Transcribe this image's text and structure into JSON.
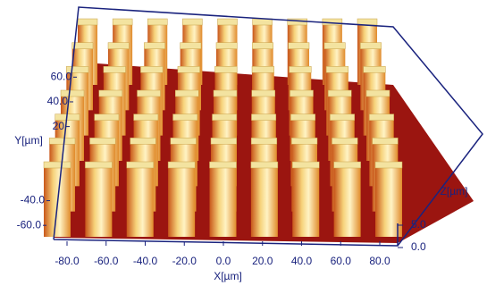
{
  "chart_data": {
    "type": "surface3d",
    "xlabel": "X[µm]",
    "ylabel": "Y[µm]",
    "zlabel": "Z[µm]",
    "xticks": [
      {
        "value": -80,
        "label": "-80.0"
      },
      {
        "value": -60,
        "label": "-60.0"
      },
      {
        "value": -40,
        "label": "-40.0"
      },
      {
        "value": -20,
        "label": "-20.0"
      },
      {
        "value": 0,
        "label": "0.0"
      },
      {
        "value": 20,
        "label": "20.0"
      },
      {
        "value": 40,
        "label": "40.0"
      },
      {
        "value": 60,
        "label": "60.0"
      },
      {
        "value": 80,
        "label": "80.0"
      }
    ],
    "xlim": [
      -90,
      90
    ],
    "yticks": [
      {
        "value": -60,
        "label": "-60.0"
      },
      {
        "value": -40,
        "label": "-40.0"
      },
      {
        "value": 20,
        "label": "20"
      },
      {
        "value": 40,
        "label": "40.0"
      },
      {
        "value": 60,
        "label": "60.0"
      }
    ],
    "ylim": [
      -70,
      70
    ],
    "zticks": [
      {
        "value": 0,
        "label": "0.0"
      },
      {
        "value": 5,
        "label": "5.0"
      }
    ],
    "zlim": [
      0,
      10
    ]
  }
}
